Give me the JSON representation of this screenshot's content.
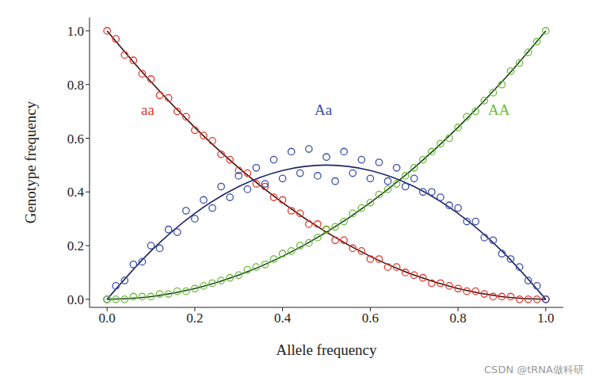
{
  "chart_data": {
    "type": "scatter",
    "x_label": "Allele frequency",
    "y_label": "Genotype frequency",
    "watermark": "CSDN @tRNA做科研",
    "xlim": [
      -0.04,
      1.04
    ],
    "ylim": [
      -0.03,
      1.05
    ],
    "xticks": [
      {
        "value": 0,
        "label": "0.0"
      },
      0.2,
      0.4,
      0.6,
      0.8,
      {
        "value": 1,
        "label": "1.0"
      }
    ],
    "yticks": [
      {
        "value": 0,
        "label": "0.0"
      },
      0.2,
      0.4,
      0.6,
      0.8,
      {
        "value": 1,
        "label": "1.0"
      }
    ],
    "grid": false,
    "x": [
      0,
      0.02,
      0.04,
      0.06,
      0.08,
      0.1,
      0.12,
      0.14,
      0.16,
      0.18,
      0.2,
      0.22,
      0.24,
      0.26,
      0.28,
      0.3,
      0.32,
      0.34,
      0.36,
      0.38,
      0.4,
      0.42,
      0.44,
      0.46,
      0.48,
      0.5,
      0.52,
      0.54,
      0.56,
      0.58,
      0.6,
      0.62,
      0.64,
      0.66,
      0.68,
      0.7,
      0.72,
      0.74,
      0.76,
      0.78,
      0.8,
      0.82,
      0.84,
      0.86,
      0.88,
      0.9,
      0.92,
      0.94,
      0.96,
      0.98,
      1
    ],
    "series": [
      {
        "name": "aa",
        "color": "#e0392e",
        "type": "scatter",
        "marker": "circle",
        "values": [
          1.0,
          0.97,
          0.91,
          0.89,
          0.84,
          0.82,
          0.76,
          0.75,
          0.7,
          0.68,
          0.63,
          0.61,
          0.59,
          0.54,
          0.52,
          0.48,
          0.47,
          0.43,
          0.42,
          0.38,
          0.37,
          0.33,
          0.32,
          0.28,
          0.28,
          0.26,
          0.22,
          0.22,
          0.19,
          0.18,
          0.15,
          0.15,
          0.12,
          0.12,
          0.1,
          0.09,
          0.08,
          0.06,
          0.06,
          0.05,
          0.04,
          0.03,
          0.03,
          0.02,
          0.01,
          0.01,
          0.01,
          0.0,
          0.0,
          0.0,
          0.0
        ],
        "fit": {
          "color": "#3a1010",
          "line_style": "solid",
          "x": [
            0,
            0.1,
            0.2,
            0.3,
            0.4,
            0.5,
            0.6,
            0.7,
            0.8,
            0.9,
            1
          ],
          "values": [
            1,
            0.81,
            0.64,
            0.49,
            0.36,
            0.25,
            0.16,
            0.09,
            0.04,
            0.01,
            0
          ]
        }
      },
      {
        "name": "Aa",
        "color": "#3d4fa3",
        "type": "scatter",
        "marker": "circle",
        "values": [
          0.0,
          0.05,
          0.07,
          0.13,
          0.14,
          0.2,
          0.19,
          0.26,
          0.25,
          0.33,
          0.3,
          0.37,
          0.34,
          0.42,
          0.38,
          0.46,
          0.41,
          0.49,
          0.43,
          0.52,
          0.45,
          0.55,
          0.47,
          0.56,
          0.46,
          0.53,
          0.44,
          0.55,
          0.47,
          0.52,
          0.45,
          0.51,
          0.44,
          0.49,
          0.42,
          0.45,
          0.4,
          0.4,
          0.38,
          0.35,
          0.34,
          0.29,
          0.29,
          0.23,
          0.22,
          0.17,
          0.15,
          0.12,
          0.07,
          0.05,
          0.0
        ],
        "fit": {
          "color": "#1c2466",
          "line_style": "solid",
          "x": [
            0,
            0.1,
            0.2,
            0.3,
            0.4,
            0.5,
            0.6,
            0.7,
            0.8,
            0.9,
            1
          ],
          "values": [
            0,
            0.18,
            0.32,
            0.42,
            0.48,
            0.5,
            0.48,
            0.42,
            0.32,
            0.18,
            0
          ]
        }
      },
      {
        "name": "AA",
        "color": "#6dbb3c",
        "type": "scatter",
        "marker": "circle",
        "values": [
          0.0,
          0.0,
          0.0,
          0.01,
          0.01,
          0.01,
          0.02,
          0.02,
          0.03,
          0.03,
          0.04,
          0.05,
          0.06,
          0.07,
          0.08,
          0.09,
          0.11,
          0.12,
          0.13,
          0.15,
          0.17,
          0.18,
          0.2,
          0.21,
          0.23,
          0.26,
          0.27,
          0.29,
          0.32,
          0.34,
          0.36,
          0.39,
          0.41,
          0.43,
          0.46,
          0.49,
          0.52,
          0.55,
          0.58,
          0.6,
          0.64,
          0.68,
          0.7,
          0.74,
          0.77,
          0.8,
          0.85,
          0.88,
          0.92,
          0.96,
          1.0
        ],
        "fit": {
          "color": "#164216",
          "line_style": "solid",
          "x": [
            0,
            0.1,
            0.2,
            0.3,
            0.4,
            0.5,
            0.6,
            0.7,
            0.8,
            0.9,
            1
          ],
          "values": [
            0,
            0.01,
            0.04,
            0.09,
            0.16,
            0.25,
            0.36,
            0.49,
            0.64,
            0.81,
            1
          ]
        }
      }
    ]
  }
}
